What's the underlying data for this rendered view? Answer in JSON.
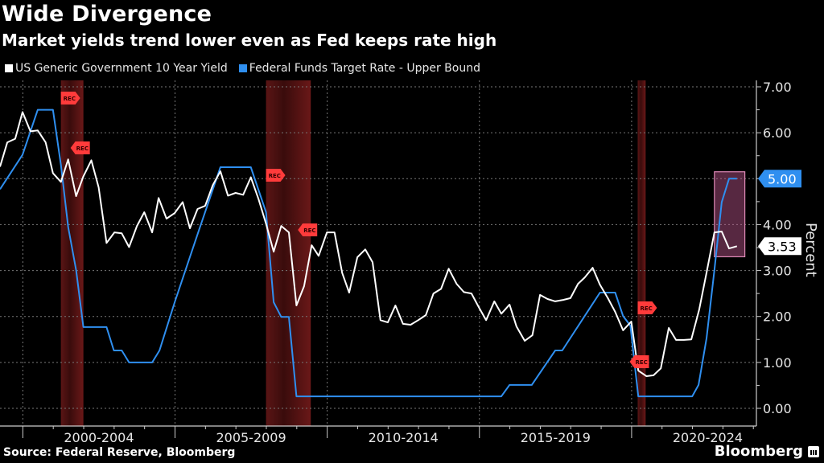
{
  "header": {
    "title": "Wide Divergence",
    "subtitle": "Market yields trend lower even as Fed keeps rate high"
  },
  "footer": {
    "source": "Source: Federal Reserve, Bloomberg",
    "brand": "Bloomberg"
  },
  "chart_data": {
    "type": "line",
    "title": "Wide Divergence",
    "subtitle": "Market yields trend lower even as Fed keeps rate high",
    "xlabel": "",
    "ylabel": "Percent",
    "xlim": [
      1999.25,
      2024.1
    ],
    "ylim": [
      0,
      7
    ],
    "grid": true,
    "legend_position": "top-left",
    "y_ticks": [
      "0.00",
      "1.00",
      "2.00",
      "3.00",
      "4.00",
      "5.00",
      "6.00",
      "7.00"
    ],
    "y_tick_values": [
      0,
      1,
      2,
      3,
      4,
      5,
      6,
      7
    ],
    "x_ticks": [
      "2000-2004",
      "2005-2009",
      "2010-2014",
      "2015-2019",
      "2020-2024"
    ],
    "x_tick_centers": [
      2002.5,
      2007.5,
      2012.5,
      2017.5,
      2022.5
    ],
    "x_boundaries": [
      2000,
      2005,
      2010,
      2015,
      2020
    ],
    "series": [
      {
        "name": "US Generic Government 10 Year Yield",
        "color": "#ffffff",
        "x": [
          1999.25,
          1999.49,
          1999.75,
          1999.99,
          2000.25,
          2000.49,
          2000.75,
          2000.99,
          2001.25,
          2001.49,
          2001.75,
          2001.99,
          2002.25,
          2002.49,
          2002.75,
          2003.01,
          2003.25,
          2003.49,
          2003.75,
          2003.99,
          2004.25,
          2004.46,
          2004.72,
          2004.99,
          2005.25,
          2005.49,
          2005.74,
          2005.99,
          2006.24,
          2006.49,
          2006.74,
          2006.99,
          2007.24,
          2007.49,
          2007.74,
          2007.99,
          2008.24,
          2008.49,
          2008.74,
          2008.99,
          2009.24,
          2009.49,
          2009.72,
          2009.99,
          2010.24,
          2010.49,
          2010.72,
          2010.99,
          2011.25,
          2011.49,
          2011.75,
          2011.99,
          2012.24,
          2012.49,
          2012.74,
          2012.99,
          2013.24,
          2013.49,
          2013.74,
          2013.99,
          2014.25,
          2014.49,
          2014.74,
          2014.99,
          2015.22,
          2015.49,
          2015.72,
          2015.99,
          2016.22,
          2016.49,
          2016.74,
          2016.99,
          2017.24,
          2017.49,
          2017.75,
          2017.99,
          2018.24,
          2018.46,
          2018.72,
          2018.96,
          2019.22,
          2019.46,
          2019.72,
          2019.99,
          2020.22,
          2020.49,
          2020.72,
          2020.96,
          2021.22,
          2021.46,
          2021.72,
          2021.96,
          2022.22,
          2022.46,
          2022.72,
          2022.96,
          2023.2,
          2023.46
        ],
        "values": [
          5.26,
          5.79,
          5.87,
          6.45,
          6.03,
          6.05,
          5.79,
          5.12,
          4.93,
          5.42,
          4.62,
          5.05,
          5.4,
          4.81,
          3.6,
          3.83,
          3.81,
          3.51,
          3.97,
          4.27,
          3.83,
          4.58,
          4.13,
          4.25,
          4.49,
          3.92,
          4.34,
          4.41,
          4.86,
          5.16,
          4.63,
          4.69,
          4.65,
          5.03,
          4.56,
          4.02,
          3.41,
          3.97,
          3.83,
          2.24,
          2.66,
          3.55,
          3.32,
          3.83,
          3.83,
          2.95,
          2.52,
          3.29,
          3.46,
          3.18,
          1.92,
          1.87,
          2.24,
          1.84,
          1.82,
          1.92,
          2.03,
          2.5,
          2.6,
          3.04,
          2.71,
          2.53,
          2.5,
          2.19,
          1.92,
          2.33,
          2.06,
          2.26,
          1.78,
          1.47,
          1.59,
          2.47,
          2.38,
          2.33,
          2.36,
          2.4,
          2.71,
          2.85,
          3.06,
          2.69,
          2.4,
          2.1,
          1.7,
          1.89,
          0.82,
          0.7,
          0.72,
          0.87,
          1.75,
          1.49,
          1.49,
          1.5,
          2.15,
          2.95,
          3.83,
          3.85,
          3.48,
          3.53
        ]
      },
      {
        "name": "Federal Funds Target Rate - Upper Bound",
        "color": "#2f8ff0",
        "x": [
          1999.25,
          1999.99,
          2000.49,
          2000.99,
          2001.25,
          2001.49,
          2001.75,
          2001.99,
          2002.75,
          2002.99,
          2003.25,
          2003.49,
          2004.25,
          2004.49,
          2004.99,
          2005.75,
          2006.49,
          2007.49,
          2007.99,
          2008.24,
          2008.49,
          2008.74,
          2008.99,
          2015.72,
          2015.99,
          2016.72,
          2017.49,
          2017.72,
          2018.96,
          2019.46,
          2019.72,
          2019.96,
          2020.22,
          2021.99,
          2022.2,
          2022.46,
          2022.72,
          2022.96,
          2023.2,
          2023.46
        ],
        "values": [
          4.77,
          5.52,
          6.5,
          6.5,
          5.3,
          3.95,
          3.01,
          1.77,
          1.77,
          1.26,
          1.26,
          1.0,
          1.0,
          1.26,
          2.31,
          3.81,
          5.25,
          5.25,
          4.27,
          2.31,
          1.99,
          1.99,
          0.26,
          0.26,
          0.51,
          0.51,
          1.26,
          1.26,
          2.52,
          2.52,
          2.01,
          1.8,
          0.26,
          0.26,
          0.51,
          1.52,
          3.01,
          4.49,
          5.0,
          5.0
        ]
      }
    ],
    "last_value_labels": [
      {
        "series": "Federal Funds Target Rate - Upper Bound",
        "label": "5.00",
        "value": 5.0,
        "color": "#2f8ff0"
      },
      {
        "series": "US Generic Government 10 Year Yield",
        "label": "3.53",
        "value": 3.53,
        "color": "#ffffff"
      }
    ],
    "recessions": [
      {
        "start": 2001.25,
        "end": 2001.99,
        "label": "REC"
      },
      {
        "start": 2007.99,
        "end": 2009.46,
        "label": "REC"
      },
      {
        "start": 2020.2,
        "end": 2020.46,
        "label": "REC"
      }
    ],
    "highlight_box": {
      "x_start": 2022.72,
      "x_end": 2023.72,
      "y_low": 3.3,
      "y_high": 5.15,
      "color": "#c05890"
    }
  }
}
